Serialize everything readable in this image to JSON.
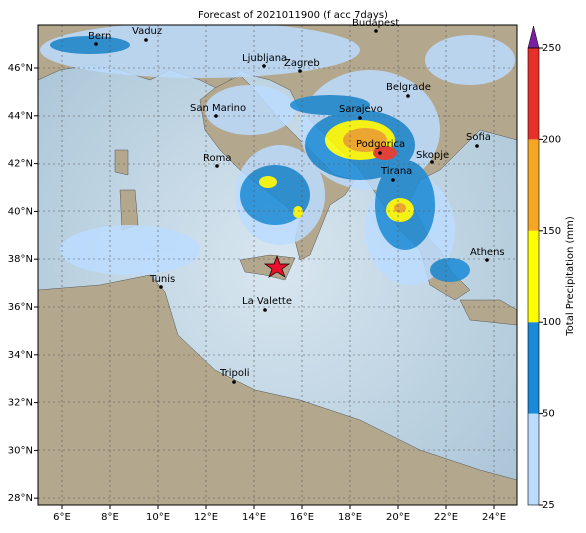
{
  "title": "Forecast of 2021011900 (f acc 7days)",
  "x_tick_labels": [
    "6°E",
    "8°E",
    "10°E",
    "12°E",
    "14°E",
    "16°E",
    "18°E",
    "20°E",
    "22°E",
    "24°E"
  ],
  "y_tick_labels": [
    "46°N",
    "44°N",
    "42°N",
    "40°N",
    "38°N",
    "36°N",
    "34°N",
    "32°N",
    "30°N",
    "28°N"
  ],
  "cities": [
    "Bern",
    "Vaduz",
    "Budapest",
    "Ljubljana",
    "Zagreb",
    "San Marino",
    "Belgrade",
    "Sarajevo",
    "Roma",
    "Podgorica",
    "Skopje",
    "Sofia",
    "Tirana",
    "Athens",
    "Tunis",
    "La Valette",
    "Tripoli"
  ],
  "colorbar": {
    "label": "Total Precipitation (mm)",
    "ticks": [
      25,
      50,
      100,
      150,
      200,
      250
    ],
    "colors": [
      "#bcdcff",
      "#1a8ad8",
      "#ffff00",
      "#f5a623",
      "#e8302a"
    ],
    "extend_color": "#7a1fa2"
  }
}
